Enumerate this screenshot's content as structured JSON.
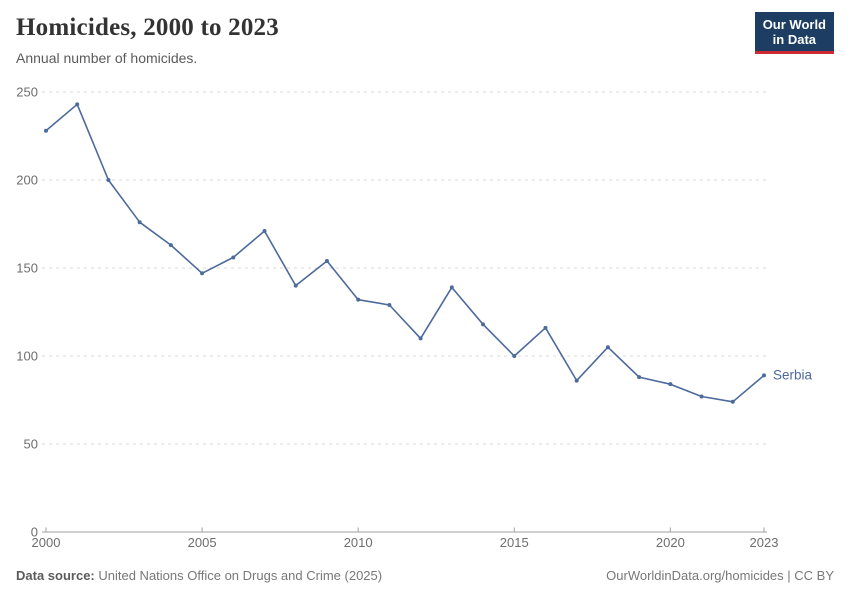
{
  "header": {
    "title": "Homicides, 2000 to 2023",
    "subtitle": "Annual number of homicides."
  },
  "logo": {
    "line1": "Our World",
    "line2": "in Data",
    "bg_color": "#1D3D63",
    "underline_color": "#CE2A32"
  },
  "footer": {
    "source_label": "Data source:",
    "source_text": " United Nations Office on Drugs and Crime (2025)",
    "attribution": "OurWorldinData.org/homicides | CC BY"
  },
  "chart_data": {
    "type": "line",
    "title": "Homicides, 2000 to 2023",
    "xlabel": "",
    "ylabel": "",
    "xlim": [
      2000,
      2023
    ],
    "ylim": [
      0,
      250
    ],
    "x_ticks": [
      2000,
      2005,
      2010,
      2015,
      2020,
      2023
    ],
    "y_ticks": [
      0,
      50,
      100,
      150,
      200,
      250
    ],
    "grid": "horizontal-dashed",
    "legend_position": "end-of-line-label",
    "line_color": "#4C6A9C",
    "axis_color": "#a0a0a0",
    "grid_color": "#dadada",
    "tick_label_color": "#6e6e6e",
    "series": [
      {
        "name": "Serbia",
        "x": [
          2000,
          2001,
          2002,
          2003,
          2004,
          2005,
          2006,
          2007,
          2008,
          2009,
          2010,
          2011,
          2012,
          2013,
          2014,
          2015,
          2016,
          2017,
          2018,
          2019,
          2020,
          2021,
          2022,
          2023
        ],
        "values": [
          228,
          243,
          200,
          176,
          163,
          147,
          156,
          171,
          140,
          154,
          132,
          129,
          110,
          139,
          118,
          100,
          116,
          86,
          105,
          88,
          84,
          77,
          74,
          89
        ]
      }
    ]
  }
}
